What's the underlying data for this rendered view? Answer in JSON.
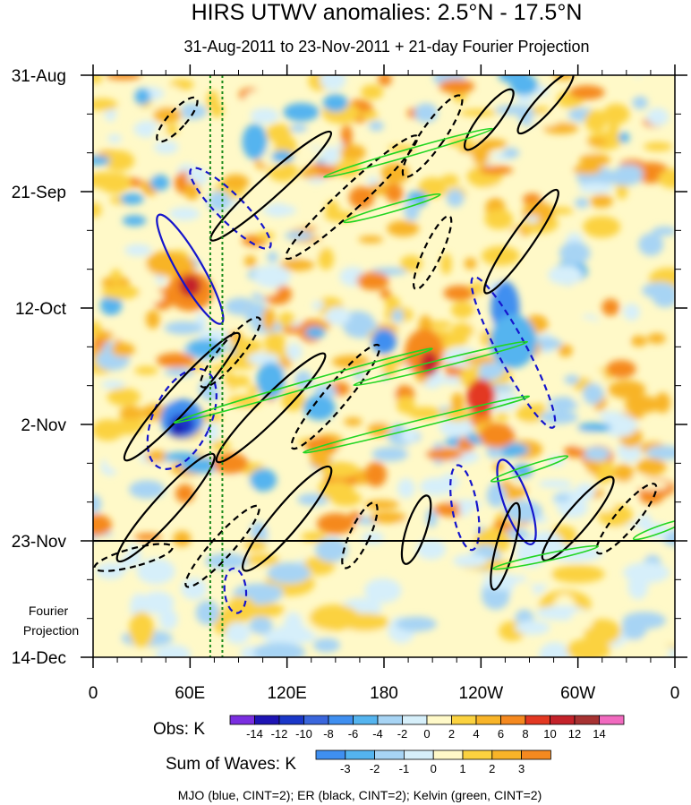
{
  "chart_data": {
    "type": "heatmap",
    "title": "HIRS UTWV anomalies: 2.5°N - 17.5°N",
    "subtitle": "31-Aug-2011 to 23-Nov-2011 + 21-day Fourier Projection",
    "x_axis": {
      "label": "",
      "tick_labels": [
        "0",
        "60E",
        "120E",
        "180",
        "120W",
        "60W",
        "0"
      ],
      "tick_longitudes": [
        0,
        60,
        120,
        180,
        240,
        300,
        360
      ],
      "range": [
        0,
        360
      ]
    },
    "y_axis": {
      "tick_labels": [
        "31-Aug",
        "21-Sep",
        "12-Oct",
        "2-Nov",
        "23-Nov",
        "14-Dec"
      ],
      "tick_day_offsets": [
        0,
        21,
        42,
        63,
        84,
        105
      ],
      "range_days": [
        0,
        105
      ]
    },
    "projection_label": [
      "Fourier",
      "Projection"
    ],
    "projection_start_day": 84,
    "reference_longitudes": [
      72.5,
      80
    ],
    "obs_colorbar": {
      "label": "Obs: K",
      "levels": [
        "-14",
        "-12",
        "-10",
        "-8",
        "-6",
        "-4",
        "-2",
        "0",
        "2",
        "4",
        "6",
        "8",
        "10",
        "12",
        "14"
      ],
      "colors": [
        "#7a2ee0",
        "#1e14b4",
        "#1a37c8",
        "#3a66dc",
        "#3f8ff0",
        "#54b4ef",
        "#a7d4f4",
        "#d6effa",
        "#fff9c8",
        "#fbd23f",
        "#f8b428",
        "#f5891f",
        "#e33822",
        "#c4222a",
        "#a73232",
        "#f16abf"
      ]
    },
    "waves_colorbar": {
      "label": "Sum of Waves: K",
      "levels": [
        "-3",
        "-2",
        "-1",
        "0",
        "1",
        "2",
        "3"
      ],
      "colors": [
        "#3f8ff0",
        "#54b4ef",
        "#a7d4f4",
        "#d6effa",
        "#fff9c8",
        "#fbd23f",
        "#f8b428",
        "#f5891f"
      ]
    },
    "legend_text": "MJO (blue, CINT=2); ER (black, CINT=2); Kelvin (green, CINT=2)",
    "contour_series": [
      {
        "name": "MJO",
        "color": "#1515cc",
        "cint": 2
      },
      {
        "name": "ER",
        "color": "#000000",
        "cint": 2
      },
      {
        "name": "Kelvin",
        "color": "#22d622",
        "cint": 2
      }
    ],
    "features": [
      {
        "wave": "MJO",
        "sign": "neg",
        "lon": 55,
        "day": 62,
        "rx": 32,
        "ry": 60,
        "rot": 25
      },
      {
        "wave": "MJO",
        "sign": "neg",
        "lon": 85,
        "day": 24,
        "rx": 15,
        "ry": 62,
        "rot": -45
      },
      {
        "wave": "MJO",
        "sign": "neg",
        "lon": 260,
        "day": 50,
        "rx": 16,
        "ry": 95,
        "rot": -28
      },
      {
        "wave": "MJO",
        "sign": "pos",
        "lon": 60,
        "day": 35,
        "rx": 14,
        "ry": 70,
        "rot": -30
      },
      {
        "wave": "MJO",
        "sign": "pos",
        "lon": 262,
        "day": 77,
        "rx": 14,
        "ry": 50,
        "rot": -20
      },
      {
        "wave": "MJO",
        "sign": "neg",
        "lon": 230,
        "day": 78,
        "rx": 14,
        "ry": 48,
        "rot": -10
      },
      {
        "wave": "MJO",
        "sign": "neg",
        "lon": 88,
        "day": 93,
        "rx": 12,
        "ry": 25,
        "rot": -5
      },
      {
        "wave": "ER",
        "sign": "neg",
        "lon": 52,
        "day": 8,
        "rx": 10,
        "ry": 32,
        "rot": 42
      },
      {
        "wave": "ER",
        "sign": "pos",
        "lon": 110,
        "day": 20,
        "rx": 12,
        "ry": 90,
        "rot": 48
      },
      {
        "wave": "ER",
        "sign": "neg",
        "lon": 160,
        "day": 22,
        "rx": 13,
        "ry": 100,
        "rot": 47
      },
      {
        "wave": "ER",
        "sign": "neg",
        "lon": 210,
        "day": 11,
        "rx": 13,
        "ry": 55,
        "rot": 35
      },
      {
        "wave": "ER",
        "sign": "pos",
        "lon": 245,
        "day": 8,
        "rx": 11,
        "ry": 42,
        "rot": 38
      },
      {
        "wave": "ER",
        "sign": "pos",
        "lon": 280,
        "day": 5,
        "rx": 10,
        "ry": 45,
        "rot": 42
      },
      {
        "wave": "ER",
        "sign": "neg",
        "lon": 210,
        "day": 32,
        "rx": 10,
        "ry": 45,
        "rot": 25
      },
      {
        "wave": "ER",
        "sign": "pos",
        "lon": 265,
        "day": 30,
        "rx": 12,
        "ry": 70,
        "rot": 35
      },
      {
        "wave": "ER",
        "sign": "neg",
        "lon": 85,
        "day": 50,
        "rx": 12,
        "ry": 50,
        "rot": 40
      },
      {
        "wave": "ER",
        "sign": "pos",
        "lon": 55,
        "day": 58,
        "rx": 14,
        "ry": 95,
        "rot": 42
      },
      {
        "wave": "ER",
        "sign": "pos",
        "lon": 110,
        "day": 60,
        "rx": 13,
        "ry": 85,
        "rot": 45
      },
      {
        "wave": "ER",
        "sign": "neg",
        "lon": 150,
        "day": 58,
        "rx": 13,
        "ry": 75,
        "rot": 40
      },
      {
        "wave": "ER",
        "sign": "pos",
        "lon": 45,
        "day": 78,
        "rx": 14,
        "ry": 80,
        "rot": 42
      },
      {
        "wave": "ER",
        "sign": "neg",
        "lon": 80,
        "day": 85,
        "rx": 12,
        "ry": 60,
        "rot": 42
      },
      {
        "wave": "ER",
        "sign": "pos",
        "lon": 120,
        "day": 80,
        "rx": 15,
        "ry": 75,
        "rot": 40
      },
      {
        "wave": "ER",
        "sign": "neg",
        "lon": 165,
        "day": 83,
        "rx": 11,
        "ry": 40,
        "rot": 25
      },
      {
        "wave": "ER",
        "sign": "pos",
        "lon": 200,
        "day": 82,
        "rx": 11,
        "ry": 40,
        "rot": 18
      },
      {
        "wave": "ER",
        "sign": "pos",
        "lon": 255,
        "day": 85,
        "rx": 10,
        "ry": 50,
        "rot": 15
      },
      {
        "wave": "ER",
        "sign": "pos",
        "lon": 300,
        "day": 80,
        "rx": 13,
        "ry": 60,
        "rot": 40
      },
      {
        "wave": "ER",
        "sign": "neg",
        "lon": 330,
        "day": 80,
        "rx": 12,
        "ry": 50,
        "rot": 40
      },
      {
        "wave": "ER",
        "sign": "neg",
        "lon": 25,
        "day": 87,
        "rx": 10,
        "ry": 45,
        "rot": 75
      },
      {
        "wave": "Kelvin",
        "sign": "pos",
        "lon": 195,
        "day": 14,
        "rx": 4,
        "ry": 98,
        "rot": 74
      },
      {
        "wave": "Kelvin",
        "sign": "pos",
        "lon": 185,
        "day": 24,
        "rx": 4,
        "ry": 56,
        "rot": 74
      },
      {
        "wave": "Kelvin",
        "sign": "pos",
        "lon": 130,
        "day": 56,
        "rx": 4,
        "ry": 150,
        "rot": 74
      },
      {
        "wave": "Kelvin",
        "sign": "pos",
        "lon": 200,
        "day": 63,
        "rx": 4,
        "ry": 130,
        "rot": 76
      },
      {
        "wave": "Kelvin",
        "sign": "pos",
        "lon": 215,
        "day": 52,
        "rx": 4,
        "ry": 100,
        "rot": 76
      },
      {
        "wave": "Kelvin",
        "sign": "pos",
        "lon": 270,
        "day": 71,
        "rx": 4,
        "ry": 45,
        "rot": 72
      },
      {
        "wave": "Kelvin",
        "sign": "pos",
        "lon": 350,
        "day": 82,
        "rx": 4,
        "ry": 30,
        "rot": 70
      },
      {
        "wave": "Kelvin",
        "sign": "pos",
        "lon": 280,
        "day": 87,
        "rx": 4,
        "ry": 60,
        "rot": 78
      }
    ]
  }
}
